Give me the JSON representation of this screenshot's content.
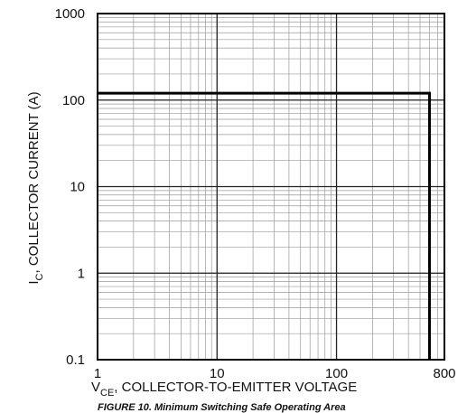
{
  "chart_data": {
    "type": "line",
    "caption": "FIGURE 10. Minimum Switching Safe Operating Area",
    "xlabel": [
      "V",
      "CE",
      ", COLLECTOR-TO-EMITTER VOLTAGE"
    ],
    "ylabel": [
      "I",
      "C",
      ", COLLECTOR CURRENT (A)"
    ],
    "xscale": "log",
    "yscale": "log",
    "grid": true,
    "xlim": [
      1,
      800
    ],
    "ylim": [
      0.1,
      1000
    ],
    "xticks": [
      1,
      10,
      100,
      800
    ],
    "yticks": [
      0.1,
      1,
      10,
      100,
      1000
    ],
    "xminor_ticks": [
      2,
      3,
      4,
      5,
      6,
      7,
      8,
      9,
      10,
      20,
      30,
      40,
      50,
      60,
      70,
      80,
      90,
      100,
      200,
      300,
      400,
      500,
      600,
      700
    ],
    "yminor_ticks": [
      0.2,
      0.3,
      0.4,
      0.5,
      0.6,
      0.7,
      0.8,
      0.9,
      1,
      2,
      3,
      4,
      5,
      6,
      7,
      8,
      9,
      10,
      20,
      30,
      40,
      50,
      60,
      70,
      80,
      90,
      100,
      200,
      300,
      400,
      500,
      600,
      700,
      800,
      900
    ],
    "series": [
      {
        "color": "#000000",
        "x": [
          1,
          600,
          600
        ],
        "values": [
          120,
          120,
          0.1
        ]
      }
    ]
  }
}
